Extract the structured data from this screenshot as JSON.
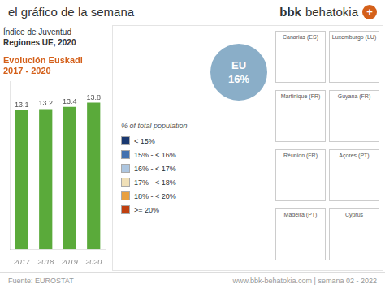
{
  "chart_data": {
    "type": "bar",
    "title": [
      "Evolución Euskadi",
      "2017 - 2020"
    ],
    "subtitle": [
      "Índice de Juventud",
      "Regiones UE, 2020"
    ],
    "categories": [
      "2017",
      "2018",
      "2019",
      "2020"
    ],
    "values": [
      13.1,
      13.2,
      13.4,
      13.8
    ],
    "color": "#5aaa3a",
    "ylim": [
      0,
      15.8
    ],
    "data_labels": true,
    "tick_labels": "x",
    "grid": false,
    "annotations": [
      {
        "text": "el gráfico de la semana"
      },
      {
        "text": "bbk"
      },
      {
        "text": "behatokia"
      },
      {
        "text": "+",
        "color": "#d4601a"
      },
      {
        "text": "Fuente: EUROSTAT"
      },
      {
        "text": "www.bbk-behatokia.com | semana 02 - 2022"
      },
      {
        "text": "EU\n16%",
        "color": "#8aaec8"
      },
      {
        "text": "% of total population"
      },
      {
        "text": "< 15%",
        "color": "#1a3870"
      },
      {
        "text": "15% - < 16%",
        "color": "#4472b0"
      },
      {
        "text": "16% - < 17%",
        "color": "#adc6e0"
      },
      {
        "text": "17% - < 18%",
        "color": "#f0e0b8"
      },
      {
        "text": "18% - < 20%",
        "color": "#e8a040"
      },
      {
        "text": ">= 20%",
        "color": "#c04010"
      },
      {
        "text": "Canarias (ES)"
      },
      {
        "text": "Luxemburgo (LU)"
      },
      {
        "text": "Martinique (FR)"
      },
      {
        "text": "Guyana (FR)"
      },
      {
        "text": "Réunion (FR)"
      },
      {
        "text": "Açores (PT)"
      },
      {
        "text": "Madeira (PT)"
      },
      {
        "text": "Cyprus"
      }
    ]
  }
}
